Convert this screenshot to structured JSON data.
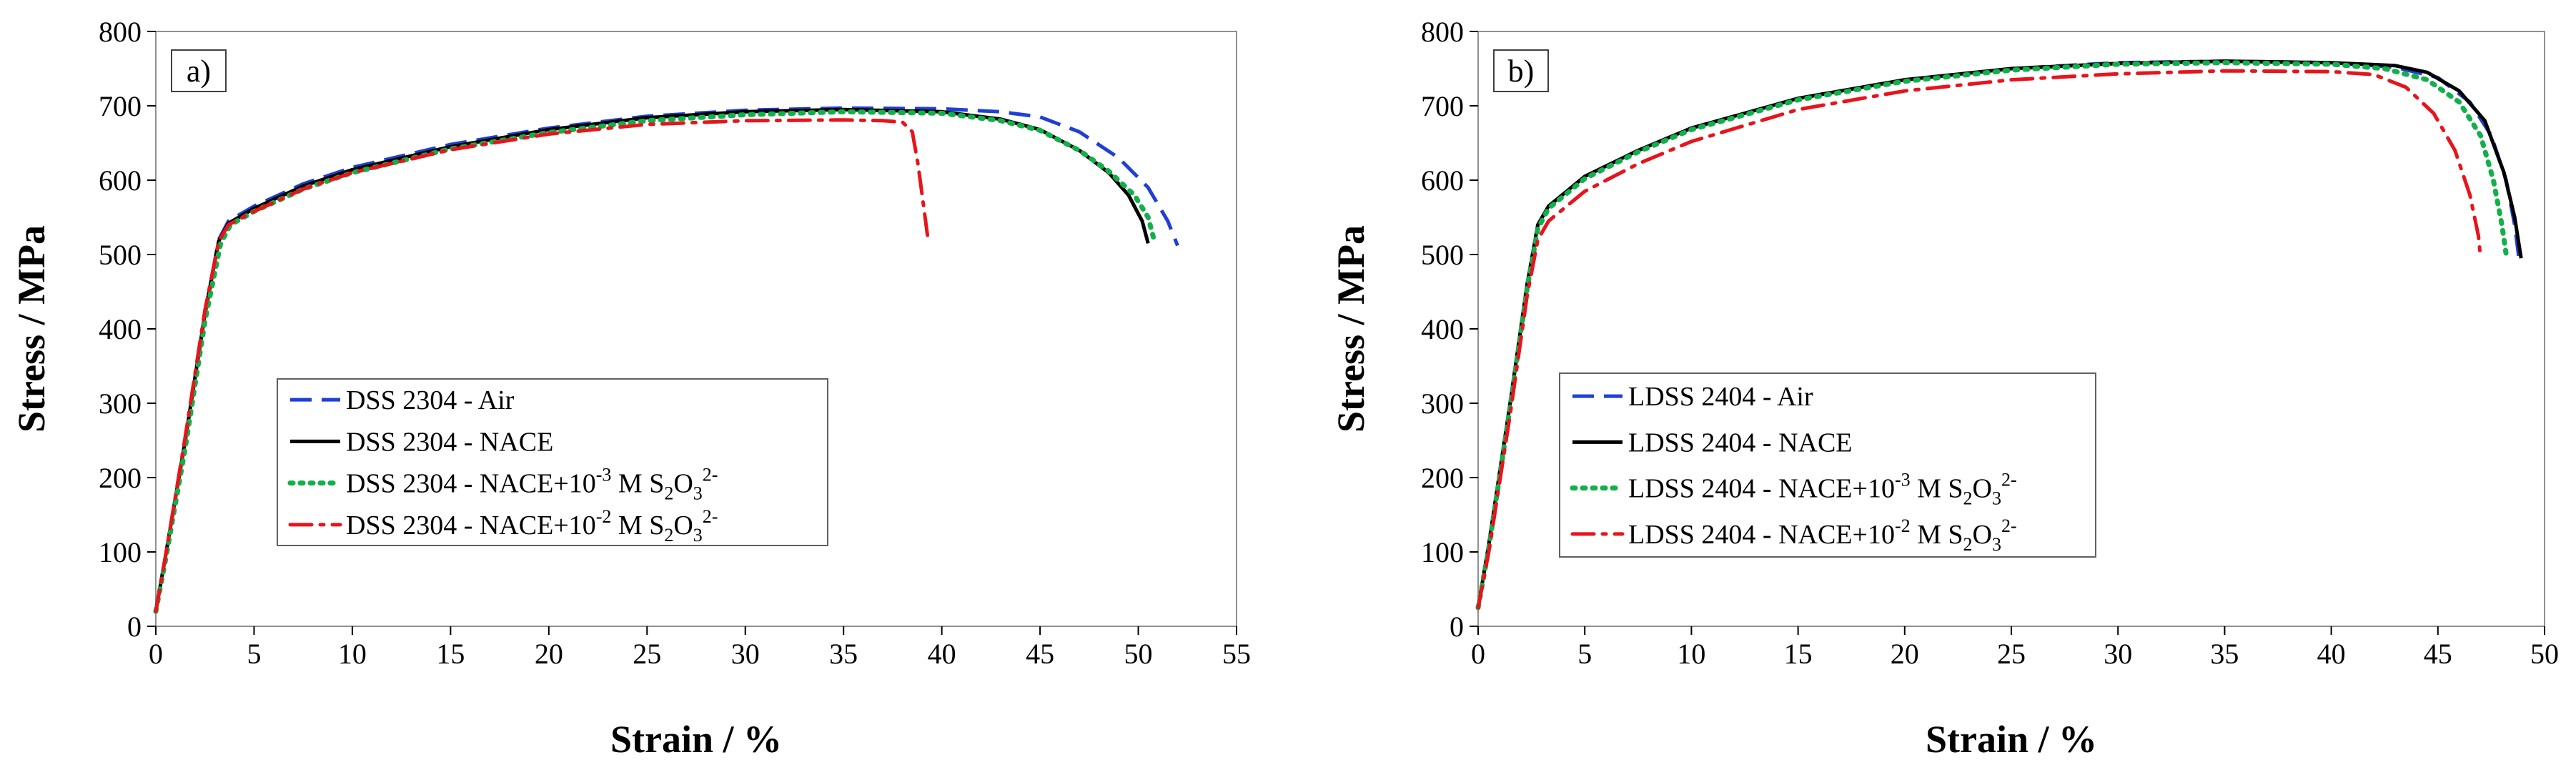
{
  "colors": {
    "air": "#1f3fd6",
    "nace": "#000000",
    "nace_e3": "#12b04a",
    "nace_e2": "#e8141b",
    "plot_border": "#909090",
    "legend_border": "#606060"
  },
  "chart_data": [
    {
      "type": "line",
      "panel_label": "a)",
      "xlabel": "Strain / %",
      "ylabel": "Stress / MPa",
      "xlim": [
        0,
        55
      ],
      "ylim": [
        0,
        800
      ],
      "x_ticks": [
        "0",
        "5",
        "10",
        "15",
        "20",
        "25",
        "30",
        "35",
        "40",
        "45",
        "50",
        "55"
      ],
      "y_ticks": [
        "0",
        "100",
        "200",
        "300",
        "400",
        "500",
        "600",
        "700",
        "800"
      ],
      "grid": false,
      "legend_position": "lower-left",
      "series": [
        {
          "name": "DSS 2304 - Air",
          "legend": {
            "base": "DSS 2304 - Air",
            "exp": "",
            "mid": "",
            "sup": ""
          },
          "color_key": "air",
          "style": "dashed",
          "points": [
            [
              0,
              20
            ],
            [
              0.5,
              95
            ],
            [
              1.5,
              250
            ],
            [
              2.5,
              420
            ],
            [
              3.2,
              520
            ],
            [
              3.7,
              545
            ],
            [
              5,
              565
            ],
            [
              7.5,
              595
            ],
            [
              10,
              617
            ],
            [
              15,
              648
            ],
            [
              20,
              670
            ],
            [
              25,
              686
            ],
            [
              30,
              694
            ],
            [
              35,
              697
            ],
            [
              40,
              696
            ],
            [
              43,
              692
            ],
            [
              45,
              685
            ],
            [
              47,
              665
            ],
            [
              49,
              630
            ],
            [
              50.5,
              590
            ],
            [
              51.5,
              545
            ],
            [
              52,
              512
            ]
          ]
        },
        {
          "name": "DSS 2304 - NACE",
          "legend": {
            "base": "DSS 2304 - NACE",
            "exp": "",
            "mid": "",
            "sup": ""
          },
          "color_key": "nace",
          "style": "solid",
          "points": [
            [
              0,
              20
            ],
            [
              0.5,
              95
            ],
            [
              1.5,
              250
            ],
            [
              2.5,
              420
            ],
            [
              3.2,
              518
            ],
            [
              3.7,
              542
            ],
            [
              5,
              562
            ],
            [
              7.5,
              592
            ],
            [
              10,
              614
            ],
            [
              15,
              645
            ],
            [
              20,
              668
            ],
            [
              25,
              684
            ],
            [
              30,
              692
            ],
            [
              35,
              695
            ],
            [
              40,
              692
            ],
            [
              43,
              682
            ],
            [
              45,
              668
            ],
            [
              47,
              640
            ],
            [
              48.5,
              610
            ],
            [
              49.5,
              580
            ],
            [
              50.2,
              545
            ],
            [
              50.5,
              515
            ]
          ]
        },
        {
          "name": "DSS 2304 - NACE+10-3 M  S2O32-",
          "legend": {
            "base": "DSS 2304 - NACE+10",
            "exp": "-3",
            "mid": " M  S",
            "sup": "2-"
          },
          "color_key": "nace_e3",
          "style": "dotted",
          "points": [
            [
              0,
              20
            ],
            [
              0.5,
              90
            ],
            [
              1.5,
              240
            ],
            [
              2.5,
              410
            ],
            [
              3.3,
              515
            ],
            [
              3.8,
              540
            ],
            [
              5,
              558
            ],
            [
              7.5,
              588
            ],
            [
              10,
              610
            ],
            [
              15,
              642
            ],
            [
              20,
              664
            ],
            [
              25,
              680
            ],
            [
              30,
              688
            ],
            [
              35,
              692
            ],
            [
              40,
              690
            ],
            [
              43,
              680
            ],
            [
              45,
              667
            ],
            [
              47,
              640
            ],
            [
              48.5,
              612
            ],
            [
              49.8,
              580
            ],
            [
              50.5,
              550
            ],
            [
              50.8,
              520
            ]
          ]
        },
        {
          "name": "DSS 2304 - NACE+10-2 M  S2O32-",
          "legend": {
            "base": "DSS 2304 - NACE+10",
            "exp": "-2",
            "mid": " M  S",
            "sup": "2-"
          },
          "color_key": "nace_e2",
          "style": "dashdot",
          "points": [
            [
              0,
              20
            ],
            [
              0.5,
              95
            ],
            [
              1.5,
              255
            ],
            [
              2.5,
              425
            ],
            [
              3.2,
              518
            ],
            [
              3.7,
              540
            ],
            [
              5,
              558
            ],
            [
              7.5,
              588
            ],
            [
              10,
              610
            ],
            [
              15,
              641
            ],
            [
              20,
              662
            ],
            [
              25,
              675
            ],
            [
              30,
              680
            ],
            [
              35,
              681
            ],
            [
              37,
              680
            ],
            [
              38,
              678
            ],
            [
              38.5,
              665
            ],
            [
              38.8,
              620
            ],
            [
              39.1,
              560
            ],
            [
              39.3,
              520
            ]
          ]
        }
      ]
    },
    {
      "type": "line",
      "panel_label": "b)",
      "xlabel": "Strain / %",
      "ylabel": "Stress / MPa",
      "xlim": [
        0,
        50
      ],
      "ylim": [
        0,
        800
      ],
      "x_ticks": [
        "0",
        "5",
        "10",
        "15",
        "20",
        "25",
        "30",
        "35",
        "40",
        "45",
        "50"
      ],
      "y_ticks": [
        "0",
        "100",
        "200",
        "300",
        "400",
        "500",
        "600",
        "700",
        "800"
      ],
      "grid": false,
      "legend_position": "lower-left",
      "series": [
        {
          "name": "LDSS 2404 - Air",
          "legend": {
            "base": "LDSS 2404 - Air",
            "exp": "",
            "mid": "",
            "sup": ""
          },
          "color_key": "air",
          "style": "dashed",
          "points": [
            [
              0,
              25
            ],
            [
              0.5,
              110
            ],
            [
              1.5,
              300
            ],
            [
              2.3,
              460
            ],
            [
              2.8,
              540
            ],
            [
              3.3,
              565
            ],
            [
              5,
              605
            ],
            [
              7.5,
              640
            ],
            [
              10,
              670
            ],
            [
              15,
              710
            ],
            [
              20,
              735
            ],
            [
              25,
              750
            ],
            [
              30,
              758
            ],
            [
              35,
              760
            ],
            [
              40,
              758
            ],
            [
              43,
              752
            ],
            [
              45,
              738
            ],
            [
              46.5,
              705
            ],
            [
              47.5,
              660
            ],
            [
              48.2,
              600
            ],
            [
              48.6,
              540
            ],
            [
              48.8,
              495
            ]
          ]
        },
        {
          "name": "LDSS 2404 - NACE",
          "legend": {
            "base": "LDSS 2404 - NACE",
            "exp": "",
            "mid": "",
            "sup": ""
          },
          "color_key": "nace",
          "style": "solid",
          "points": [
            [
              0,
              25
            ],
            [
              0.5,
              110
            ],
            [
              1.5,
              300
            ],
            [
              2.3,
              460
            ],
            [
              2.8,
              540
            ],
            [
              3.3,
              565
            ],
            [
              5,
              605
            ],
            [
              7.5,
              640
            ],
            [
              10,
              670
            ],
            [
              15,
              710
            ],
            [
              20,
              735
            ],
            [
              25,
              750
            ],
            [
              30,
              757
            ],
            [
              35,
              760
            ],
            [
              40,
              758
            ],
            [
              43,
              754
            ],
            [
              44.5,
              745
            ],
            [
              46,
              720
            ],
            [
              47.2,
              680
            ],
            [
              48.1,
              610
            ],
            [
              48.6,
              550
            ],
            [
              48.9,
              495
            ]
          ]
        },
        {
          "name": "LDSS 2404 - NACE+10-3 M  S2O32-",
          "legend": {
            "base": "LDSS 2404 - NACE+10",
            "exp": "-3",
            "mid": " M  S",
            "sup": "2-"
          },
          "color_key": "nace_e3",
          "style": "dotted",
          "points": [
            [
              0,
              25
            ],
            [
              0.5,
              105
            ],
            [
              1.5,
              295
            ],
            [
              2.3,
              455
            ],
            [
              2.8,
              535
            ],
            [
              3.3,
              562
            ],
            [
              5,
              602
            ],
            [
              7.5,
              638
            ],
            [
              10,
              668
            ],
            [
              15,
              708
            ],
            [
              20,
              733
            ],
            [
              25,
              748
            ],
            [
              30,
              756
            ],
            [
              35,
              758
            ],
            [
              40,
              756
            ],
            [
              42.5,
              750
            ],
            [
              44.5,
              735
            ],
            [
              46,
              705
            ],
            [
              47,
              660
            ],
            [
              47.6,
              600
            ],
            [
              48,
              540
            ],
            [
              48.2,
              500
            ]
          ]
        },
        {
          "name": "LDSS 2404 - NACE+10-2 M  S2O32-",
          "legend": {
            "base": "LDSS 2404 - NACE+10",
            "exp": "-2",
            "mid": " M  S",
            "sup": "2-"
          },
          "color_key": "nace_e2",
          "style": "dashdot",
          "points": [
            [
              0,
              25
            ],
            [
              0.5,
              100
            ],
            [
              1.5,
              285
            ],
            [
              2.3,
              445
            ],
            [
              2.8,
              520
            ],
            [
              3.3,
              545
            ],
            [
              5,
              585
            ],
            [
              7.5,
              622
            ],
            [
              10,
              652
            ],
            [
              15,
              695
            ],
            [
              20,
              720
            ],
            [
              25,
              735
            ],
            [
              30,
              743
            ],
            [
              35,
              747
            ],
            [
              40,
              746
            ],
            [
              42,
              742
            ],
            [
              43.5,
              725
            ],
            [
              44.8,
              690
            ],
            [
              45.8,
              640
            ],
            [
              46.5,
              580
            ],
            [
              46.9,
              525
            ],
            [
              47,
              495
            ]
          ]
        }
      ]
    }
  ]
}
